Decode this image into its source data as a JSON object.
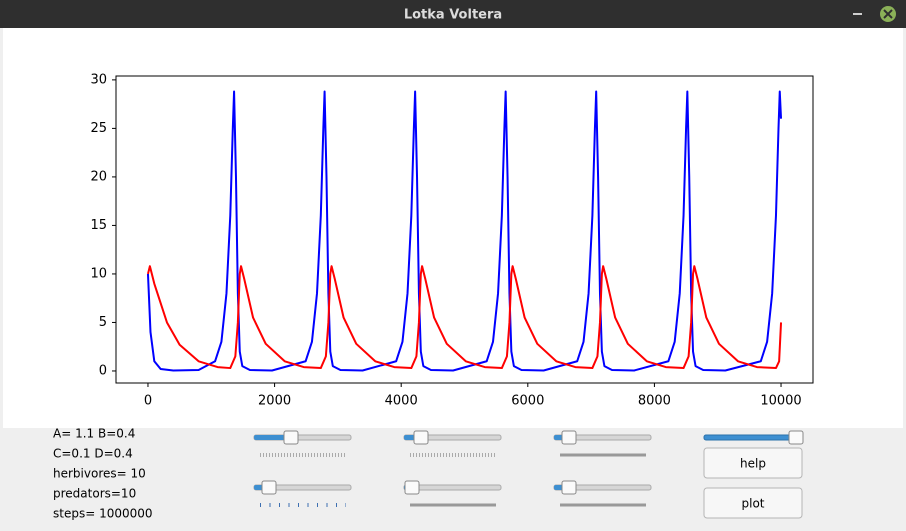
{
  "window": {
    "title": "Lotka Voltera"
  },
  "chart_data": {
    "type": "line",
    "xlim": [
      -505,
      10505
    ],
    "ylim": [
      -1.24,
      30.4
    ],
    "xticks": [
      0,
      2000,
      4000,
      6000,
      8000,
      10000
    ],
    "yticks": [
      0,
      5,
      10,
      15,
      20,
      25,
      30
    ],
    "grid": false,
    "series": [
      {
        "color": "#0000ff",
        "x": [
          0,
          40,
          100,
          200,
          400,
          800,
          1060,
          1160,
          1240,
          1300,
          1340,
          1360,
          1390,
          1420,
          1450,
          1490,
          1610,
          1960,
          2490,
          2590,
          2670,
          2730,
          2770,
          2790,
          2820,
          2850,
          2880,
          2920,
          3040,
          3390,
          3920,
          4020,
          4100,
          4160,
          4200,
          4220,
          4250,
          4280,
          4310,
          4350,
          4470,
          4820,
          5350,
          5450,
          5530,
          5590,
          5630,
          5650,
          5680,
          5710,
          5740,
          5780,
          5900,
          6250,
          6780,
          6880,
          6960,
          7020,
          7060,
          7080,
          7110,
          7140,
          7170,
          7210,
          7330,
          7680,
          8220,
          8320,
          8400,
          8460,
          8500,
          8520,
          8550,
          8580,
          8610,
          8650,
          8770,
          9120,
          9680,
          9780,
          9860,
          9920,
          9960,
          9980,
          10000
        ],
        "values": [
          10,
          4,
          1,
          0.2,
          0.05,
          0.1,
          1,
          3,
          8,
          16,
          25,
          28.8,
          20,
          8,
          2,
          0.5,
          0.1,
          0.05,
          1,
          3,
          8,
          16,
          25,
          28.8,
          20,
          8,
          2,
          0.5,
          0.1,
          0.05,
          1,
          3,
          8,
          16,
          25,
          28.8,
          20,
          8,
          2,
          0.5,
          0.1,
          0.05,
          1,
          3,
          8,
          16,
          25,
          28.8,
          20,
          8,
          2,
          0.5,
          0.1,
          0.05,
          1,
          3,
          8,
          16,
          25,
          28.8,
          20,
          8,
          2,
          0.5,
          0.1,
          0.05,
          1,
          3,
          8,
          16,
          25,
          28.8,
          20,
          8,
          2,
          0.5,
          0.1,
          0.05,
          1,
          3,
          8,
          16,
          25,
          28.8,
          26
        ]
      },
      {
        "color": "#ff0000",
        "x": [
          0,
          30,
          100,
          300,
          500,
          800,
          1100,
          1300,
          1380,
          1420,
          1450,
          1470,
          1520,
          1660,
          1860,
          2160,
          2460,
          2730,
          2810,
          2850,
          2880,
          2900,
          2950,
          3090,
          3290,
          3590,
          3890,
          4160,
          4240,
          4280,
          4310,
          4330,
          4380,
          4520,
          4720,
          5020,
          5320,
          5590,
          5670,
          5710,
          5740,
          5760,
          5810,
          5950,
          6150,
          6450,
          6750,
          7020,
          7100,
          7140,
          7170,
          7190,
          7240,
          7380,
          7580,
          7880,
          8180,
          8460,
          8540,
          8580,
          8610,
          8630,
          8680,
          8820,
          9020,
          9320,
          9620,
          9920,
          9970,
          10000
        ],
        "values": [
          10,
          10.8,
          9,
          5,
          2.7,
          1,
          0.4,
          0.3,
          1.5,
          5,
          10,
          10.8,
          9.5,
          5.5,
          2.8,
          1,
          0.4,
          0.3,
          1.5,
          5,
          10,
          10.8,
          9.5,
          5.5,
          2.8,
          1,
          0.4,
          0.3,
          1.5,
          5,
          10,
          10.8,
          9.5,
          5.5,
          2.8,
          1,
          0.4,
          0.3,
          1.5,
          5,
          10,
          10.8,
          9.5,
          5.5,
          2.8,
          1,
          0.4,
          0.3,
          1.5,
          5,
          10,
          10.8,
          9.5,
          5.5,
          2.8,
          1,
          0.4,
          0.3,
          1.5,
          5,
          10,
          10.8,
          9.5,
          5.5,
          2.8,
          1,
          0.4,
          0.3,
          1,
          5
        ]
      }
    ]
  },
  "controls": {
    "params": [
      "A= 1.1 B=0.4",
      "C=0.1 D=0.4",
      "herbivores= 10",
      "predators=10",
      "steps= 1000000"
    ],
    "buttons": [
      "help",
      "plot"
    ]
  }
}
